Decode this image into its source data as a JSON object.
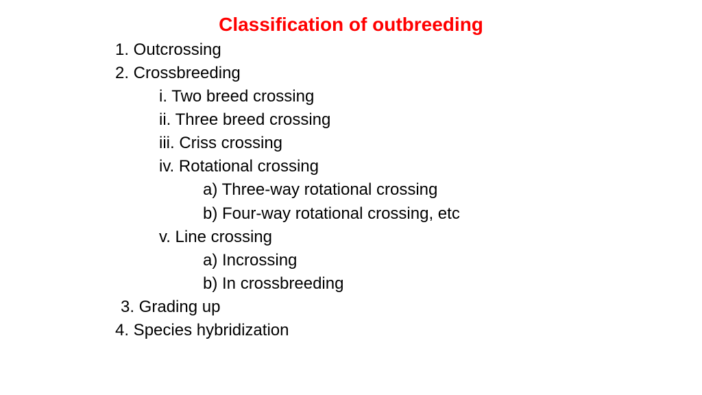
{
  "slide": {
    "title": "Classification of outbreeding",
    "title_color": "#ff0000",
    "title_fontsize": 28,
    "text_color": "#000000",
    "text_fontsize": 24,
    "background_color": "#ffffff",
    "font_family": "Comic Sans MS",
    "lines": [
      {
        "text": "1. Outcrossing",
        "indent": 0
      },
      {
        "text": "2. Crossbreeding",
        "indent": 0
      },
      {
        "text": "i. Two breed crossing",
        "indent": 1
      },
      {
        "text": "ii. Three breed crossing",
        "indent": 1
      },
      {
        "text": "iii. Criss crossing",
        "indent": 1
      },
      {
        "text": "iv. Rotational crossing",
        "indent": 1
      },
      {
        "text": "a) Three-way rotational crossing",
        "indent": 2
      },
      {
        "text": "b) Four-way rotational crossing, etc",
        "indent": 2
      },
      {
        "text": "v. Line crossing",
        "indent": 1
      },
      {
        "text": "a) Incrossing",
        "indent": 2
      },
      {
        "text": "b) In crossbreeding",
        "indent": 2
      },
      {
        "text": " 3. Grading up",
        "indent": 0,
        "special": "slight"
      },
      {
        "text": "4. Species hybridization",
        "indent": 0
      }
    ]
  }
}
